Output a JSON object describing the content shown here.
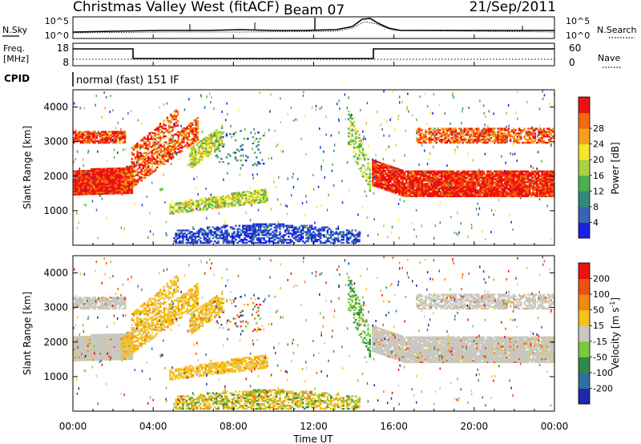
{
  "header": {
    "title": "Christmas Valley West (fitACF)",
    "beam": "Beam 07",
    "date": "21/Sep/2011"
  },
  "noise_panel": {
    "left_label": "N.Sky",
    "right_label": "N.Search",
    "left_ticks": [
      "10^5",
      "10^0"
    ],
    "right_ticks": [
      "10^5",
      "10^0"
    ]
  },
  "freq_panel": {
    "left_label_1": "Freq.",
    "left_label_2": "[MHz]",
    "right_label": "Nave",
    "left_ticks": [
      "18",
      "8"
    ],
    "right_ticks": [
      "60",
      "0"
    ],
    "cpid_label": "CPID",
    "mode_text": "normal (fast) 151 IF"
  },
  "chart_data": [
    {
      "type": "heatmap",
      "name": "power",
      "x_range": [
        "00:00",
        "00:00"
      ],
      "ylabel": "Slant Range [km]",
      "yticks": [
        1000,
        2000,
        3000,
        4000
      ],
      "ylim": [
        0,
        4500
      ],
      "colorbar": {
        "label": "Power [dB]",
        "tick_labels": [
          "4",
          "8",
          "12",
          "16",
          "20",
          "24",
          "28"
        ],
        "colors": [
          "#1a22e8",
          "#3a64b0",
          "#2f8a7a",
          "#4bb04b",
          "#a6d244",
          "#f5e62a",
          "#f5a218",
          "#f06a10",
          "#ee1010"
        ]
      }
    },
    {
      "type": "heatmap",
      "name": "velocity",
      "x_range": [
        "00:00",
        "00:00"
      ],
      "ylabel": "Slant Range [km]",
      "yticks": [
        1000,
        2000,
        3000,
        4000
      ],
      "ylim": [
        0,
        4500
      ],
      "colorbar": {
        "label": "Velocity [m s",
        "label_sup": "-1",
        "label_close": "]",
        "tick_labels": [
          "200",
          "100",
          "50",
          "15",
          "-15",
          "-50",
          "-100",
          "-200"
        ],
        "colors": [
          "#1c2aa8",
          "#2f6fa0",
          "#2e8a46",
          "#7ec83a",
          "#c8c8c0",
          "#f5c21a",
          "#f08a10",
          "#ee5010",
          "#ee1010"
        ]
      }
    }
  ],
  "x_axis": {
    "ticks": [
      "00:00",
      "04:00",
      "08:00",
      "12:00",
      "16:00",
      "20:00",
      "00:00"
    ],
    "label": "Time UT"
  }
}
